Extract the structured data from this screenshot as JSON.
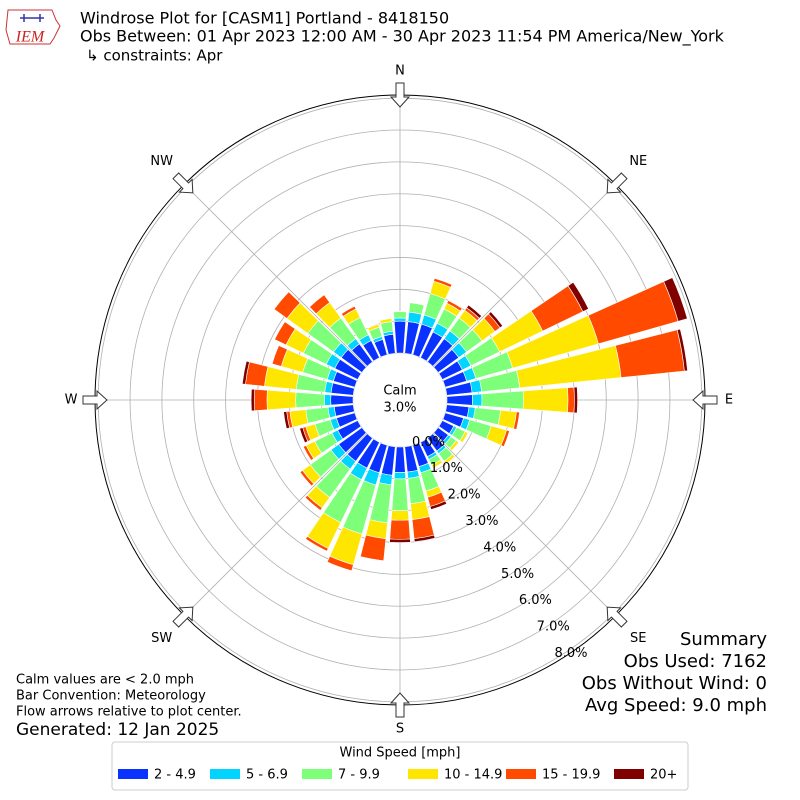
{
  "chart_data": {
    "type": "windrose",
    "logo_text": "IEM",
    "title": "Windrose Plot for [CASM1] Portland - 8418150",
    "subtitle": "Obs Between: 01 Apr 2023 12:00 AM - 30 Apr 2023 11:54 PM America/New_York",
    "constraints": "↳ constraints: Apr",
    "x": [
      0,
      10,
      20,
      30,
      40,
      50,
      60,
      70,
      80,
      90,
      100,
      110,
      120,
      130,
      140,
      150,
      160,
      170,
      180,
      190,
      200,
      210,
      220,
      230,
      240,
      250,
      260,
      270,
      280,
      290,
      300,
      310,
      320,
      330,
      340,
      350
    ],
    "xticks": [
      {
        "value": 0,
        "label": "N"
      },
      {
        "value": 45,
        "label": "NE"
      },
      {
        "value": 90,
        "label": "E"
      },
      {
        "value": 135,
        "label": "SE"
      },
      {
        "value": 180,
        "label": "S"
      },
      {
        "value": 225,
        "label": "SW"
      },
      {
        "value": 270,
        "label": "W"
      },
      {
        "value": 315,
        "label": "NW"
      }
    ],
    "ylim": [
      0,
      8.1
    ],
    "yticks": [
      {
        "value": 0,
        "label": "0.0%"
      },
      {
        "value": 1,
        "label": "1.0%"
      },
      {
        "value": 2,
        "label": "2.0%"
      },
      {
        "value": 3,
        "label": "3.0%"
      },
      {
        "value": 4,
        "label": "4.0%"
      },
      {
        "value": 5,
        "label": "5.0%"
      },
      {
        "value": 6,
        "label": "6.0%"
      },
      {
        "value": 7,
        "label": "7.0%"
      },
      {
        "value": 8,
        "label": "8.0%"
      }
    ],
    "grid": true,
    "calm_label": "Calm",
    "calm": 3.0,
    "calm_value_label": "3.0%",
    "legend_title": "Wind Speed [mph]",
    "series": [
      {
        "name": "2 - 4.9",
        "color": "#0a32ff",
        "values": [
          1.0,
          1.0,
          1.0,
          0.9,
          0.9,
          0.8,
          0.7,
          0.7,
          0.8,
          0.8,
          0.7,
          0.6,
          0.4,
          0.4,
          0.5,
          0.5,
          0.7,
          0.8,
          0.8,
          0.9,
          0.9,
          0.9,
          0.9,
          0.9,
          0.7,
          0.6,
          0.6,
          0.7,
          0.7,
          0.7,
          0.8,
          0.8,
          0.7,
          0.6,
          0.5,
          0.6
        ]
      },
      {
        "name": "5 - 6.9",
        "color": "#00d4ff",
        "values": [
          0.1,
          0.3,
          0.3,
          0.3,
          0.3,
          0.3,
          0.3,
          0.3,
          0.3,
          0.3,
          0.2,
          0.2,
          0.1,
          0.1,
          0.1,
          0.1,
          0.2,
          0.2,
          0.2,
          0.3,
          0.4,
          0.4,
          0.3,
          0.3,
          0.2,
          0.2,
          0.2,
          0.2,
          0.2,
          0.2,
          0.3,
          0.3,
          0.2,
          0.2,
          0.1,
          0.1
        ]
      },
      {
        "name": "7 - 9.9",
        "color": "#7dff7a",
        "values": [
          0.2,
          0.3,
          0.7,
          0.5,
          0.5,
          0.6,
          1.0,
          1.2,
          1.2,
          1.3,
          0.8,
          0.7,
          0.3,
          0.2,
          0.3,
          0.2,
          0.6,
          0.8,
          1.0,
          1.2,
          1.6,
          1.5,
          1.1,
          0.8,
          0.6,
          0.5,
          0.7,
          0.9,
          0.9,
          0.8,
          0.8,
          1.0,
          0.8,
          0.6,
          0.3,
          0.3
        ]
      },
      {
        "name": "10 - 14.9",
        "color": "#ffe600",
        "values": [
          0,
          0,
          0.4,
          0.2,
          0.3,
          0.5,
          1.5,
          2.8,
          3.2,
          1.4,
          0.5,
          0.5,
          0.1,
          0.1,
          0.1,
          0.1,
          0.2,
          0.5,
          0.3,
          0.5,
          1.0,
          0.9,
          0.4,
          0.3,
          0.3,
          0.3,
          0.5,
          0.9,
          1.0,
          0.7,
          0.6,
          0.8,
          0.6,
          0.3,
          0.1,
          0.1
        ]
      },
      {
        "name": "15 - 19.9",
        "color": "#ff4a00",
        "values": [
          0,
          0,
          0.1,
          0.1,
          0.1,
          0.2,
          1.4,
          2.6,
          2.0,
          0.2,
          0.1,
          0.1,
          0,
          0,
          0,
          0,
          0.3,
          0.6,
          0.6,
          0.7,
          0.2,
          0.1,
          0.1,
          0.1,
          0.1,
          0.1,
          0.1,
          0.4,
          0.6,
          0.3,
          0.4,
          0.5,
          0.3,
          0.1,
          0,
          0
        ]
      },
      {
        "name": "20+",
        "color": "#800000",
        "values": [
          0,
          0,
          0,
          0,
          0.1,
          0.1,
          0.2,
          0.3,
          0.1,
          0.1,
          0,
          0,
          0,
          0,
          0,
          0,
          0.1,
          0.1,
          0.1,
          0,
          0,
          0,
          0,
          0,
          0,
          0.1,
          0.1,
          0.1,
          0.1,
          0,
          0,
          0,
          0,
          0,
          0,
          0
        ]
      }
    ],
    "notes": [
      "Calm values are < 2.0 mph",
      "Bar Convention: Meteorology",
      "Flow arrows relative to plot center."
    ],
    "generated": "Generated: 12 Jan 2025",
    "summary": [
      "Summary",
      "Obs Used: 7162",
      "Obs Without Wind: 0",
      "Avg Speed: 9.0 mph"
    ]
  }
}
